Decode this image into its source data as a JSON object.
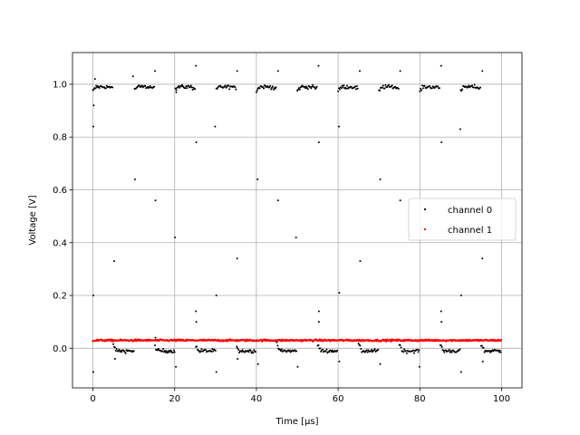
{
  "chart_data": {
    "type": "scatter",
    "xlabel": "Time [μs]",
    "ylabel": "Voltage [V]",
    "xlim": [
      -5,
      105
    ],
    "ylim": [
      -0.15,
      1.12
    ],
    "xticks": [
      0,
      20,
      40,
      60,
      80,
      100
    ],
    "yticks": [
      0.0,
      0.2,
      0.4,
      0.6,
      0.8,
      1.0
    ],
    "xtick_labels": [
      "0",
      "20",
      "40",
      "60",
      "80",
      "100"
    ],
    "ytick_labels": [
      "0.0",
      "0.2",
      "0.4",
      "0.6",
      "0.8",
      "1.0"
    ],
    "grid": true,
    "legend_position": "center-right",
    "series": [
      {
        "name": "channel 0",
        "color": "#000000",
        "marker": "dot",
        "pattern": "square wave, period 10 μs, 50% duty",
        "high_level": 0.99,
        "low_level": -0.01,
        "start_time": 0,
        "end_time": 100
      },
      {
        "name": "channel 1",
        "color": "#ff0000",
        "marker": "dot",
        "pattern": "constant with noise",
        "level": 0.03,
        "start_time": 0,
        "end_time": 100
      }
    ],
    "outliers": [
      [
        0.1,
        0.84
      ],
      [
        0.1,
        0.2
      ],
      [
        0.2,
        0.92
      ],
      [
        0.1,
        -0.09
      ],
      [
        0.5,
        1.02
      ],
      [
        5.2,
        0.33
      ],
      [
        5.4,
        -0.04
      ],
      [
        9.8,
        1.03
      ],
      [
        10.3,
        0.64
      ],
      [
        15.2,
        1.05
      ],
      [
        15.3,
        0.56
      ],
      [
        15.3,
        0.04
      ],
      [
        20.1,
        0.42
      ],
      [
        20.3,
        -0.07
      ],
      [
        20.4,
        0.97
      ],
      [
        25.2,
        1.07
      ],
      [
        25.3,
        0.78
      ],
      [
        25.2,
        0.14
      ],
      [
        25.3,
        0.1
      ],
      [
        29.9,
        0.84
      ],
      [
        30.2,
        0.2
      ],
      [
        30.2,
        -0.09
      ],
      [
        35.3,
        1.05
      ],
      [
        35.3,
        0.34
      ],
      [
        35.4,
        -0.04
      ],
      [
        40.3,
        0.64
      ],
      [
        40.4,
        -0.06
      ],
      [
        45.3,
        1.05
      ],
      [
        45.3,
        0.56
      ],
      [
        49.7,
        0.42
      ],
      [
        50.1,
        -0.07
      ],
      [
        55.2,
        1.07
      ],
      [
        55.3,
        0.78
      ],
      [
        55.3,
        0.14
      ],
      [
        55.3,
        0.1
      ],
      [
        60.2,
        0.84
      ],
      [
        60.3,
        0.21
      ],
      [
        60.3,
        -0.05
      ],
      [
        65.3,
        1.05
      ],
      [
        65.4,
        0.33
      ],
      [
        70.3,
        0.64
      ],
      [
        70.3,
        -0.06
      ],
      [
        75.2,
        1.05
      ],
      [
        75.2,
        0.56
      ],
      [
        79.9,
        -0.07
      ],
      [
        85.2,
        1.07
      ],
      [
        85.3,
        0.78
      ],
      [
        85.2,
        0.14
      ],
      [
        85.3,
        0.1
      ],
      [
        89.9,
        0.83
      ],
      [
        90.1,
        0.2
      ],
      [
        90.1,
        -0.09
      ],
      [
        95.3,
        1.05
      ],
      [
        95.3,
        0.34
      ],
      [
        95.4,
        -0.05
      ]
    ]
  }
}
